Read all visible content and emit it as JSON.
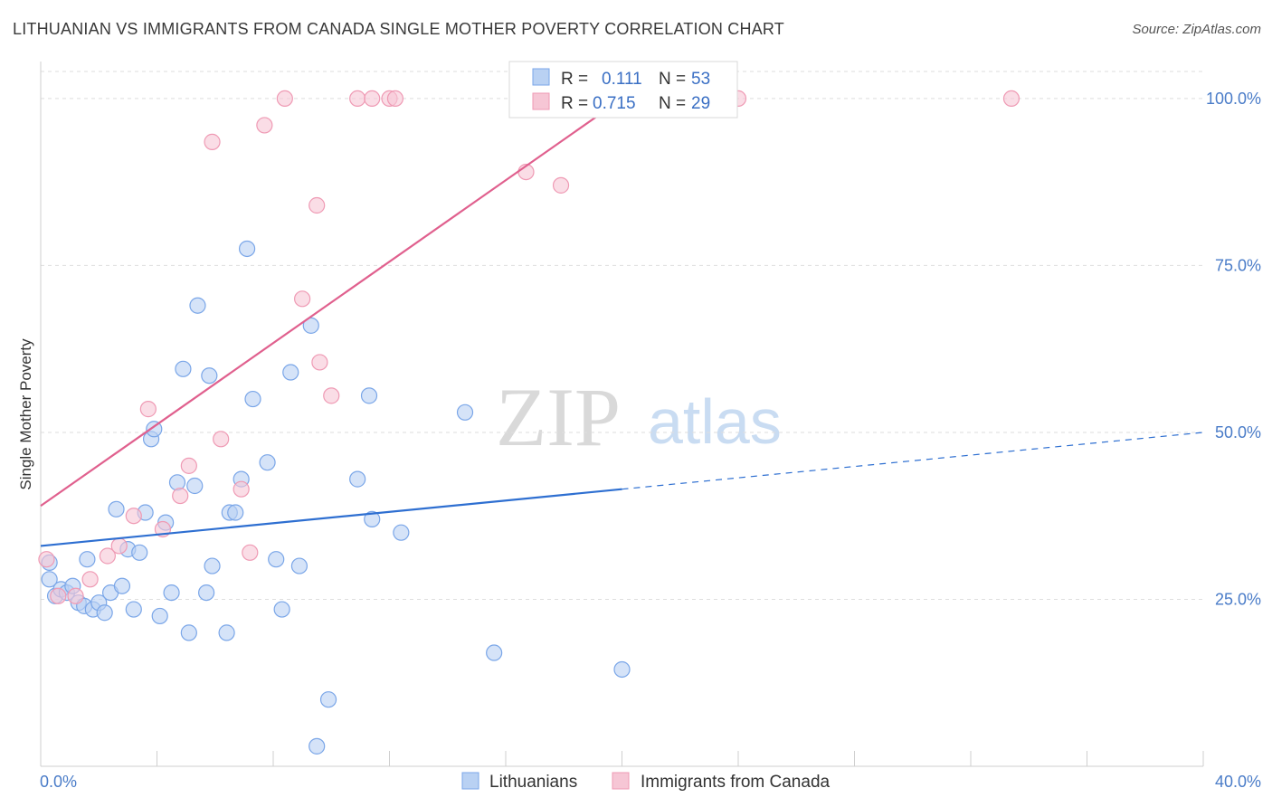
{
  "title": "LITHUANIAN VS IMMIGRANTS FROM CANADA SINGLE MOTHER POVERTY CORRELATION CHART",
  "source": "Source: ZipAtlas.com",
  "watermark": {
    "zip": "ZIP",
    "atlas": "atlas"
  },
  "chart_data": {
    "type": "scatter",
    "ylabel": "Single Mother Poverty",
    "xlim": [
      0,
      40
    ],
    "ylim": [
      0,
      105
    ],
    "x_tick_labels": [
      "0.0%",
      "40.0%"
    ],
    "y_ticks": [
      25,
      50,
      75,
      100
    ],
    "y_tick_labels": [
      "25.0%",
      "50.0%",
      "75.0%",
      "100.0%"
    ],
    "legend": {
      "r_label": "R =",
      "n_label": "N =",
      "entries": [
        {
          "r": "0.111",
          "n": "53"
        },
        {
          "r": "0.715",
          "n": "29"
        }
      ]
    },
    "series": [
      {
        "name": "Lithuanians",
        "color": "#7aa6e8",
        "fill": "#b9d1f3",
        "line_color": "#2e6fd1",
        "trend": {
          "x0": 0,
          "y0": 33.0,
          "x1": 20,
          "y1": 41.5,
          "x_dash_end": 40,
          "y_dash_end": 50.0
        },
        "points": [
          [
            0.3,
            30.5
          ],
          [
            0.3,
            28.0
          ],
          [
            0.5,
            25.5
          ],
          [
            0.7,
            26.5
          ],
          [
            0.9,
            26.0
          ],
          [
            1.1,
            27.0
          ],
          [
            1.3,
            24.5
          ],
          [
            1.5,
            24.0
          ],
          [
            1.6,
            31.0
          ],
          [
            1.8,
            23.5
          ],
          [
            2.0,
            24.5
          ],
          [
            2.2,
            23.0
          ],
          [
            2.4,
            26.0
          ],
          [
            2.6,
            38.5
          ],
          [
            2.8,
            27.0
          ],
          [
            3.0,
            32.5
          ],
          [
            3.2,
            23.5
          ],
          [
            3.4,
            32.0
          ],
          [
            3.6,
            38.0
          ],
          [
            3.8,
            49.0
          ],
          [
            3.9,
            50.5
          ],
          [
            4.1,
            22.5
          ],
          [
            4.3,
            36.5
          ],
          [
            4.5,
            26.0
          ],
          [
            4.7,
            42.5
          ],
          [
            4.9,
            59.5
          ],
          [
            5.1,
            20.0
          ],
          [
            5.3,
            42.0
          ],
          [
            5.4,
            69.0
          ],
          [
            5.7,
            26.0
          ],
          [
            5.8,
            58.5
          ],
          [
            5.9,
            30.0
          ],
          [
            6.4,
            20.0
          ],
          [
            6.5,
            38.0
          ],
          [
            6.7,
            38.0
          ],
          [
            6.9,
            43.0
          ],
          [
            7.1,
            77.5
          ],
          [
            7.3,
            55.0
          ],
          [
            7.8,
            45.5
          ],
          [
            8.1,
            31.0
          ],
          [
            8.3,
            23.5
          ],
          [
            8.6,
            59.0
          ],
          [
            8.9,
            30.0
          ],
          [
            9.3,
            66.0
          ],
          [
            9.5,
            3.0
          ],
          [
            9.9,
            10.0
          ],
          [
            10.9,
            43.0
          ],
          [
            11.3,
            55.5
          ],
          [
            11.4,
            37.0
          ],
          [
            12.4,
            35.0
          ],
          [
            14.6,
            53.0
          ],
          [
            15.6,
            17.0
          ],
          [
            20.0,
            14.5
          ]
        ]
      },
      {
        "name": "Immigrants from Canada",
        "color": "#ef9ab4",
        "fill": "#f6c6d5",
        "line_color": "#e0608e",
        "trend": {
          "x0": 0,
          "y0": 39.0,
          "x1": 21.0,
          "y1": 103.0
        },
        "points": [
          [
            0.2,
            31.0
          ],
          [
            0.6,
            25.5
          ],
          [
            1.2,
            25.5
          ],
          [
            1.7,
            28.0
          ],
          [
            2.3,
            31.5
          ],
          [
            2.7,
            33.0
          ],
          [
            3.2,
            37.5
          ],
          [
            3.7,
            53.5
          ],
          [
            4.2,
            35.5
          ],
          [
            4.8,
            40.5
          ],
          [
            5.1,
            45.0
          ],
          [
            5.9,
            93.5
          ],
          [
            6.2,
            49.0
          ],
          [
            6.9,
            41.5
          ],
          [
            7.2,
            32.0
          ],
          [
            7.7,
            96.0
          ],
          [
            8.4,
            100.0
          ],
          [
            9.0,
            70.0
          ],
          [
            9.5,
            84.0
          ],
          [
            9.6,
            60.5
          ],
          [
            10.0,
            55.5
          ],
          [
            10.9,
            100.0
          ],
          [
            11.4,
            100.0
          ],
          [
            12.0,
            100.0
          ],
          [
            12.2,
            100.0
          ],
          [
            16.7,
            89.0
          ],
          [
            17.9,
            87.0
          ],
          [
            24.0,
            100.0
          ],
          [
            33.4,
            100.0
          ]
        ]
      }
    ]
  }
}
